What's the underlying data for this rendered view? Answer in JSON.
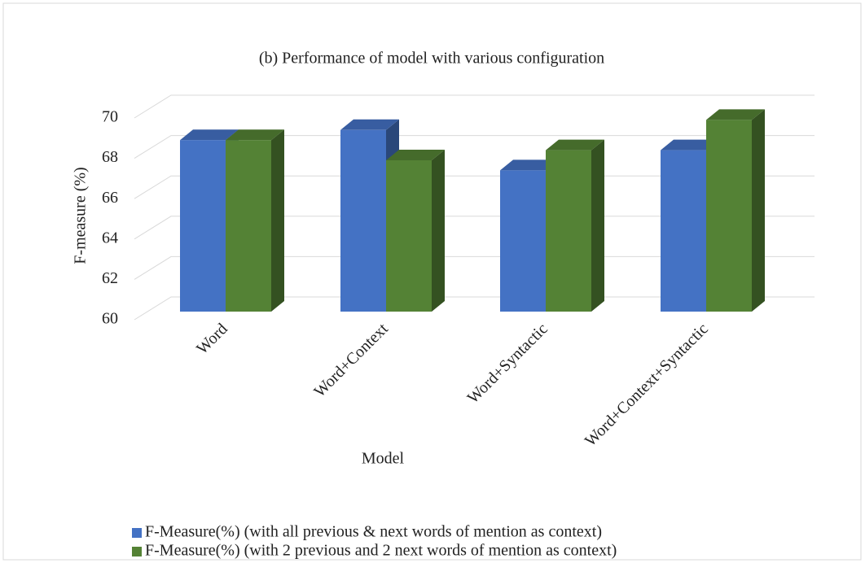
{
  "chart_data": {
    "type": "bar3d",
    "title": "(b) Performance of  model with various configuration",
    "x_label": "Model",
    "y_label": "F-measure (%)",
    "categories": [
      "Word",
      "Word+Context",
      "Word+Syntactic",
      "Word+Context+Syntactic"
    ],
    "series": [
      {
        "name": "F-Measure(%)  (with all previous & next words of mention as context)",
        "color": "#4472c4",
        "values": [
          68.5,
          69.0,
          67.0,
          68.0
        ]
      },
      {
        "name": "F-Measure(%) (with 2 previous and 2 next words of mention as context)",
        "color": "#548235",
        "values": [
          68.5,
          67.5,
          68.0,
          69.5
        ]
      }
    ],
    "ylim": [
      60,
      70
    ],
    "yticks": [
      60,
      62,
      64,
      66,
      68,
      70
    ],
    "grid": true,
    "legend": "bottom"
  }
}
